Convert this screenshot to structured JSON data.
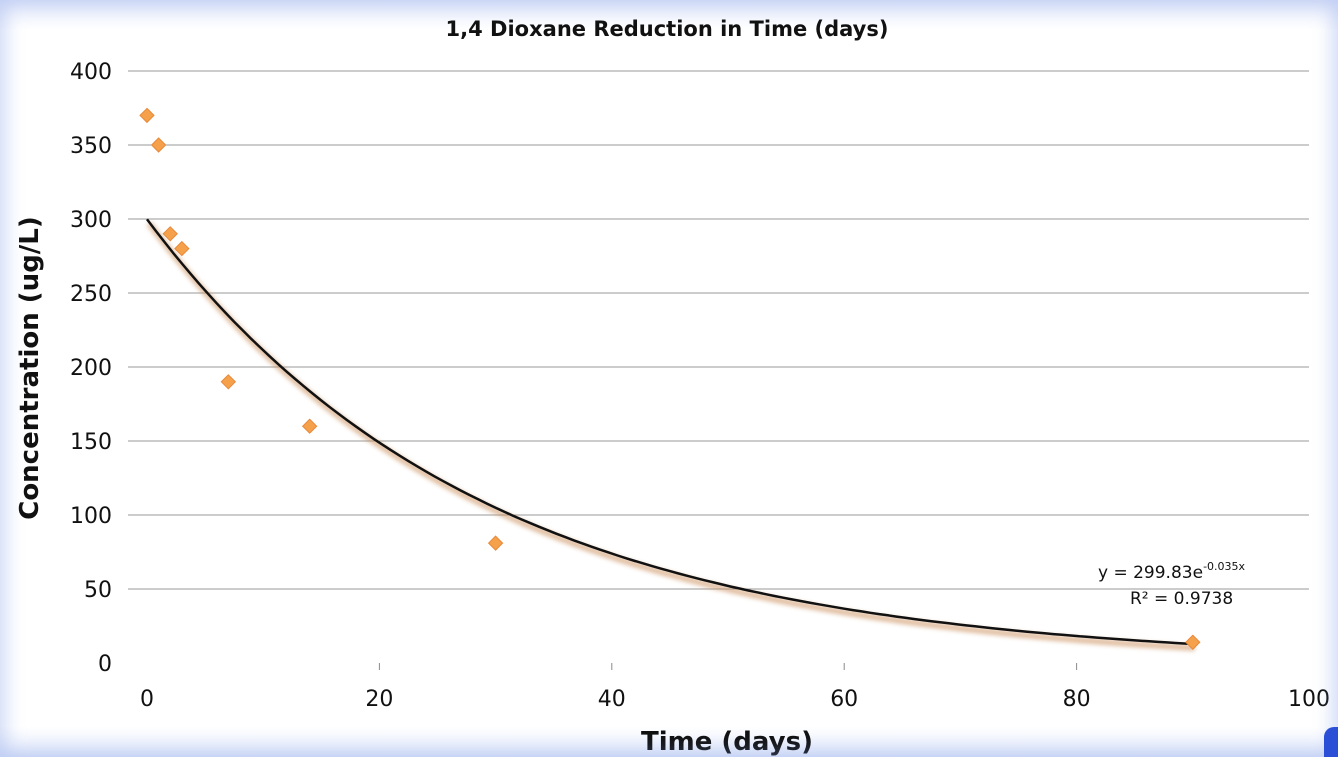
{
  "chart_data": {
    "type": "scatter",
    "title": "1,4 Dioxane Reduction in Time (days)",
    "xlabel": "Time (days)",
    "ylabel": "Concentration (ug/L)",
    "xlim": [
      0,
      100
    ],
    "ylim": [
      0,
      400
    ],
    "x_ticks": [
      0,
      20,
      40,
      60,
      80,
      100
    ],
    "y_ticks": [
      0,
      50,
      100,
      150,
      200,
      250,
      300,
      350,
      400
    ],
    "grid": "horizontal",
    "marker_color": "#f5a04a",
    "trendline_color": "#111111",
    "series": [
      {
        "x": [
          0,
          1,
          2,
          3,
          7,
          14,
          30,
          90
        ],
        "y": [
          370,
          350,
          290,
          280,
          190,
          160,
          81,
          14
        ]
      }
    ],
    "trendline": {
      "type": "exponential",
      "a": 299.83,
      "b": -0.035,
      "x_range": [
        0,
        90
      ],
      "equation_label": "y = 299.83e",
      "equation_exponent": "-0.035x",
      "r2_label": "R² = 0.9738"
    }
  }
}
